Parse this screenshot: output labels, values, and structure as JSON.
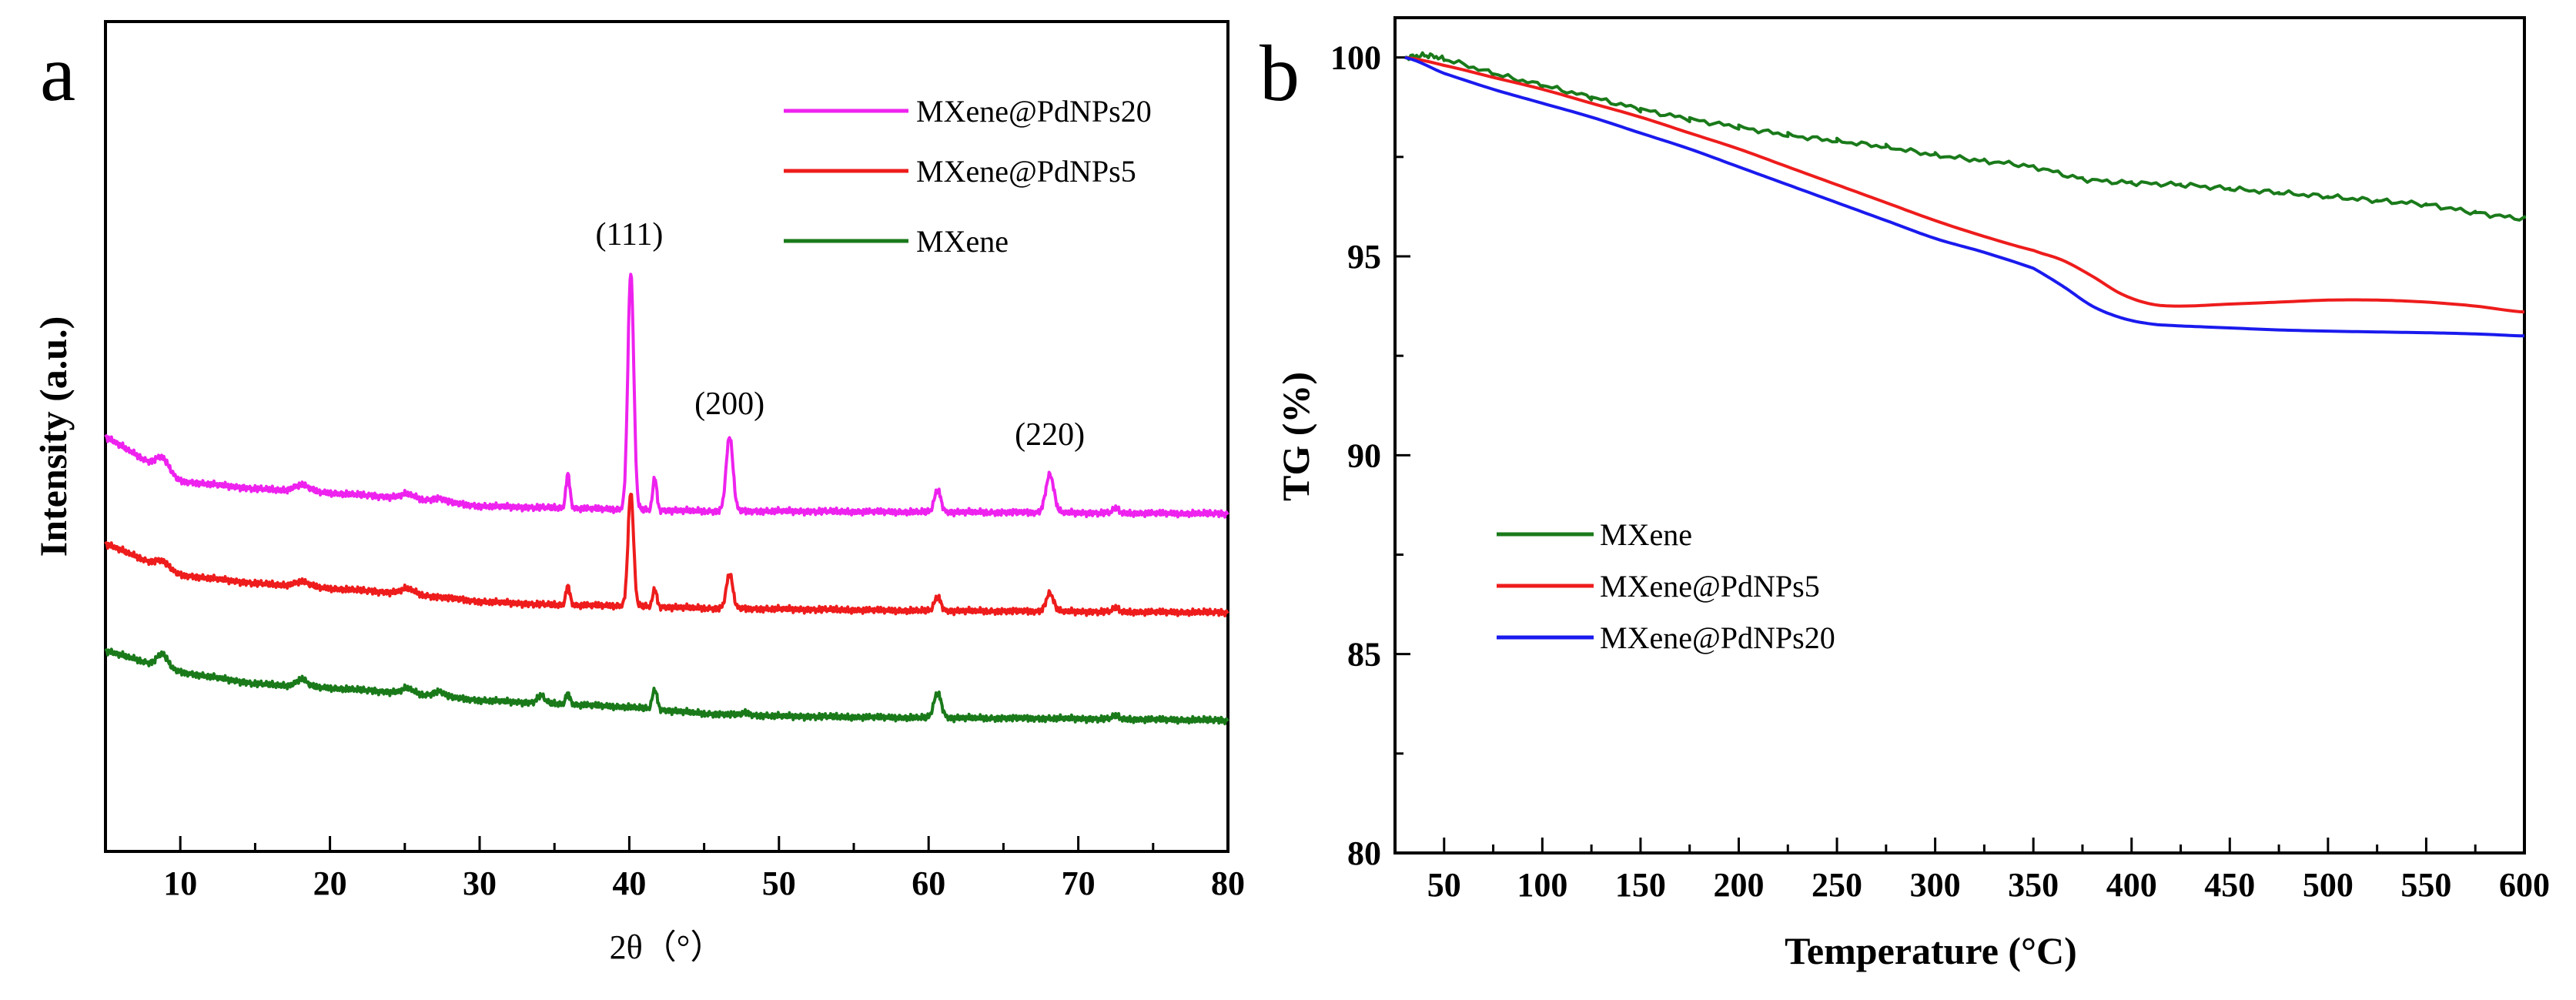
{
  "figure": {
    "panels": [
      "a",
      "b"
    ]
  },
  "colors": {
    "MXene": "#1a7a1a",
    "MXene@PdNPs5": "#ee1c1c",
    "MXene@PdNPs20": "#ee22ee",
    "MXene@PdNPs20_tg": "#1a1aee"
  },
  "chart_data": [
    {
      "type": "line",
      "panel_label": "a",
      "title": "",
      "xlabel": "2θ（°）",
      "ylabel": "Intensity (a.u.)",
      "xlim": [
        5,
        80
      ],
      "ylim": [
        0,
        100
      ],
      "xticks": [
        10,
        20,
        30,
        40,
        50,
        60,
        70,
        80
      ],
      "xtick_labels": [
        "10",
        "20",
        "30",
        "40",
        "50",
        "60",
        "70",
        "80"
      ],
      "yticks": [],
      "legend": [
        "MXene@PdNPs20",
        "MXene@PdNPs5",
        "MXene"
      ],
      "legend_position": "top-right",
      "annotations": [
        {
          "text": "(111)",
          "x": 40.0
        },
        {
          "text": "(200)",
          "x": 46.7
        },
        {
          "text": "(220)",
          "x": 68.1
        }
      ],
      "series": [
        {
          "name": "MXene@PdNPs20",
          "color": "#ee22ee",
          "baseline": [
            [
              5,
              50.0
            ],
            [
              10,
              44.6
            ],
            [
              15,
              43.7
            ],
            [
              20,
              43.2
            ],
            [
              25,
              42.6
            ],
            [
              30,
              41.6
            ],
            [
              35,
              41.4
            ],
            [
              40,
              41.2
            ],
            [
              45,
              41.0
            ],
            [
              50,
              41.0
            ],
            [
              60,
              40.9
            ],
            [
              70,
              40.8
            ],
            [
              80,
              40.7
            ]
          ],
          "peaks": [
            {
              "x": 8.8,
              "h": 1.6,
              "w": 0.6
            },
            {
              "x": 18.1,
              "h": 0.8,
              "w": 0.7
            },
            {
              "x": 25.2,
              "h": 0.5,
              "w": 0.6
            },
            {
              "x": 27.3,
              "h": 0.4,
              "w": 0.6
            },
            {
              "x": 35.9,
              "h": 4.2,
              "w": 0.18
            },
            {
              "x": 40.1,
              "h": 28.6,
              "w": 0.28
            },
            {
              "x": 41.7,
              "h": 4.0,
              "w": 0.18
            },
            {
              "x": 46.7,
              "h": 9.0,
              "w": 0.32
            },
            {
              "x": 60.6,
              "h": 2.7,
              "w": 0.3
            },
            {
              "x": 68.1,
              "h": 4.6,
              "w": 0.38
            },
            {
              "x": 72.5,
              "h": 0.6,
              "w": 0.25
            }
          ]
        },
        {
          "name": "MXene@PdNPs5",
          "color": "#ee1c1c",
          "baseline": [
            [
              5,
              37.1
            ],
            [
              10,
              33.3
            ],
            [
              15,
              32.3
            ],
            [
              20,
              31.7
            ],
            [
              25,
              31.1
            ],
            [
              30,
              30.1
            ],
            [
              35,
              29.7
            ],
            [
              40,
              29.6
            ],
            [
              45,
              29.3
            ],
            [
              50,
              29.2
            ],
            [
              60,
              29.0
            ],
            [
              70,
              28.9
            ],
            [
              80,
              28.8
            ]
          ],
          "peaks": [
            {
              "x": 8.8,
              "h": 0.8,
              "w": 0.6
            },
            {
              "x": 18.1,
              "h": 0.6,
              "w": 0.7
            },
            {
              "x": 25.2,
              "h": 0.6,
              "w": 0.6
            },
            {
              "x": 35.9,
              "h": 2.4,
              "w": 0.18
            },
            {
              "x": 40.1,
              "h": 13.7,
              "w": 0.26
            },
            {
              "x": 41.7,
              "h": 2.2,
              "w": 0.18
            },
            {
              "x": 46.7,
              "h": 4.2,
              "w": 0.3
            },
            {
              "x": 60.6,
              "h": 1.7,
              "w": 0.3
            },
            {
              "x": 68.1,
              "h": 2.2,
              "w": 0.35
            },
            {
              "x": 72.5,
              "h": 0.5,
              "w": 0.25
            }
          ]
        },
        {
          "name": "MXene",
          "color": "#1a7a1a",
          "baseline": [
            [
              5,
              24.2
            ],
            [
              10,
              21.6
            ],
            [
              15,
              20.2
            ],
            [
              20,
              19.7
            ],
            [
              25,
              19.1
            ],
            [
              30,
              18.2
            ],
            [
              35,
              17.8
            ],
            [
              40,
              17.4
            ],
            [
              45,
              16.6
            ],
            [
              50,
              16.3
            ],
            [
              60,
              16.1
            ],
            [
              70,
              16.0
            ],
            [
              80,
              15.8
            ]
          ],
          "peaks": [
            {
              "x": 8.8,
              "h": 1.6,
              "w": 0.5
            },
            {
              "x": 18.1,
              "h": 0.9,
              "w": 0.5
            },
            {
              "x": 25.2,
              "h": 0.6,
              "w": 0.5
            },
            {
              "x": 27.3,
              "h": 0.6,
              "w": 0.5
            },
            {
              "x": 34.1,
              "h": 0.9,
              "w": 0.35
            },
            {
              "x": 35.9,
              "h": 1.4,
              "w": 0.18
            },
            {
              "x": 41.7,
              "h": 2.4,
              "w": 0.22
            },
            {
              "x": 47.8,
              "h": 0.3,
              "w": 0.3
            },
            {
              "x": 60.6,
              "h": 3.0,
              "w": 0.35
            },
            {
              "x": 72.5,
              "h": 0.4,
              "w": 0.3
            }
          ]
        }
      ]
    },
    {
      "type": "line",
      "panel_label": "b",
      "title": "",
      "xlabel": "Temperature (°C)",
      "ylabel": "TG (%)",
      "xlim": [
        25,
        600
      ],
      "ylim": [
        80,
        101
      ],
      "xticks": [
        50,
        100,
        150,
        200,
        250,
        300,
        350,
        400,
        450,
        500,
        550,
        600
      ],
      "xtick_labels": [
        "50",
        "100",
        "150",
        "200",
        "250",
        "300",
        "350",
        "400",
        "450",
        "500",
        "550",
        "600"
      ],
      "yticks": [
        80,
        85,
        90,
        95,
        100
      ],
      "ytick_labels": [
        "80",
        "85",
        "90",
        "95",
        "100"
      ],
      "legend": [
        "MXene",
        "MXene@PdNPs5",
        "MXene@PdNPs20"
      ],
      "legend_position": "center-left",
      "series": [
        {
          "name": "MXene",
          "color": "#1a7a1a",
          "x": [
            30,
            40,
            50,
            75,
            100,
            125,
            150,
            175,
            200,
            225,
            250,
            275,
            300,
            325,
            350,
            375,
            400,
            425,
            450,
            475,
            500,
            525,
            550,
            575,
            600
          ],
          "y": [
            100.0,
            100.05,
            99.95,
            99.6,
            99.3,
            99.0,
            98.7,
            98.45,
            98.25,
            98.05,
            97.9,
            97.75,
            97.55,
            97.4,
            97.25,
            96.95,
            96.85,
            96.8,
            96.7,
            96.6,
            96.5,
            96.4,
            96.3,
            96.1,
            95.95
          ]
        },
        {
          "name": "MXene@PdNPs5",
          "color": "#ee1c1c",
          "x": [
            30,
            50,
            75,
            100,
            125,
            150,
            175,
            200,
            225,
            250,
            275,
            300,
            325,
            350,
            365,
            380,
            395,
            410,
            425,
            450,
            475,
            500,
            525,
            550,
            575,
            600
          ],
          "y": [
            100.0,
            99.8,
            99.5,
            99.2,
            98.85,
            98.5,
            98.1,
            97.7,
            97.25,
            96.8,
            96.35,
            95.9,
            95.5,
            95.15,
            94.9,
            94.5,
            94.05,
            93.8,
            93.75,
            93.8,
            93.85,
            93.9,
            93.9,
            93.85,
            93.75,
            93.6
          ]
        },
        {
          "name": "MXene@PdNPs20",
          "color": "#1a1aee",
          "x": [
            30,
            50,
            75,
            100,
            125,
            150,
            175,
            200,
            225,
            250,
            275,
            300,
            325,
            350,
            365,
            380,
            395,
            410,
            425,
            450,
            475,
            500,
            525,
            550,
            575,
            600
          ],
          "y": [
            100.0,
            99.6,
            99.2,
            98.85,
            98.5,
            98.1,
            97.7,
            97.25,
            96.8,
            96.35,
            95.9,
            95.45,
            95.1,
            94.7,
            94.25,
            93.75,
            93.45,
            93.3,
            93.25,
            93.2,
            93.15,
            93.12,
            93.1,
            93.08,
            93.05,
            93.0
          ]
        }
      ]
    }
  ]
}
